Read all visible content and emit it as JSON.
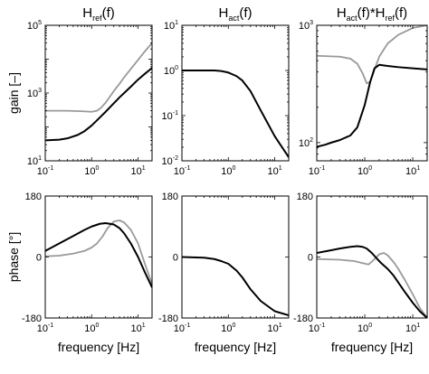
{
  "chart_data": [
    {
      "type": "line",
      "title_parts": [
        [
          "H",
          ""
        ],
        [
          "ref",
          "sub"
        ],
        [
          "(f)",
          ""
        ]
      ],
      "xlabel": "",
      "ylabel": "gain [–]",
      "xscale": "log",
      "yscale": "log",
      "xlim": [
        0.1,
        20
      ],
      "ylim": [
        10,
        100000
      ],
      "xticks": [
        0.1,
        1,
        10
      ],
      "xtick_labels": [
        [
          "10",
          "-1"
        ],
        [
          "10",
          "0"
        ],
        [
          "10",
          "1"
        ]
      ],
      "yticks": [
        10,
        1000,
        100000
      ],
      "ytick_labels": [
        [
          "10",
          "1"
        ],
        [
          "10",
          "3"
        ],
        [
          "10",
          "5"
        ]
      ],
      "series": [
        {
          "color": "#999999",
          "x": [
            0.1,
            0.3,
            0.6,
            1,
            1.3,
            1.6,
            2,
            2.5,
            3,
            4,
            5,
            7,
            10,
            14,
            20
          ],
          "y": [
            300,
            300,
            290,
            280,
            300,
            370,
            520,
            800,
            1150,
            1900,
            2900,
            5200,
            9500,
            17000,
            30000
          ]
        },
        {
          "color": "#000000",
          "x": [
            0.1,
            0.2,
            0.3,
            0.5,
            0.7,
            1,
            1.5,
            2,
            3,
            4,
            5,
            7,
            10,
            14,
            20
          ],
          "y": [
            40,
            42,
            46,
            58,
            75,
            110,
            190,
            280,
            500,
            750,
            1000,
            1550,
            2500,
            3700,
            5500
          ]
        }
      ]
    },
    {
      "type": "line",
      "title_parts": [
        [
          "H",
          ""
        ],
        [
          "act",
          "sub"
        ],
        [
          "(f)",
          ""
        ]
      ],
      "xlabel": "",
      "ylabel": "",
      "xscale": "log",
      "yscale": "log",
      "xlim": [
        0.1,
        20
      ],
      "ylim": [
        0.01,
        10
      ],
      "xticks": [
        0.1,
        1,
        10
      ],
      "xtick_labels": [
        [
          "10",
          "-1"
        ],
        [
          "10",
          "0"
        ],
        [
          "10",
          "1"
        ]
      ],
      "yticks": [
        0.01,
        0.1,
        1,
        10
      ],
      "ytick_labels": [
        [
          "10",
          "-2"
        ],
        [
          "10",
          "-1"
        ],
        [
          "10",
          "0"
        ],
        [
          "10",
          "1"
        ]
      ],
      "series": [
        {
          "color": "#000000",
          "x": [
            0.1,
            0.3,
            0.5,
            0.7,
            1,
            1.5,
            2,
            3,
            5,
            10,
            20
          ],
          "y": [
            1,
            1,
            1,
            0.97,
            0.9,
            0.75,
            0.6,
            0.35,
            0.13,
            0.035,
            0.012
          ]
        }
      ]
    },
    {
      "type": "line",
      "title_parts": [
        [
          "H",
          ""
        ],
        [
          "act",
          "sub"
        ],
        [
          "(f)*H",
          ""
        ],
        [
          "ref",
          "sub"
        ],
        [
          "(f)",
          ""
        ]
      ],
      "xlabel": "",
      "ylabel": "",
      "xscale": "log",
      "yscale": "log",
      "xlim": [
        0.1,
        20
      ],
      "ylim": [
        70,
        1000
      ],
      "xticks": [
        0.1,
        1,
        10
      ],
      "xtick_labels": [
        [
          "10",
          "-1"
        ],
        [
          "10",
          "0"
        ],
        [
          "10",
          "1"
        ]
      ],
      "yticks": [
        100,
        1000
      ],
      "ytick_labels": [
        [
          "10",
          "2"
        ],
        [
          "10",
          "3"
        ]
      ],
      "series": [
        {
          "color": "#999999",
          "x": [
            0.1,
            0.3,
            0.5,
            0.7,
            0.9,
            1.1,
            1.3,
            1.6,
            2,
            3,
            5,
            10,
            20
          ],
          "y": [
            550,
            540,
            520,
            470,
            390,
            320,
            330,
            420,
            540,
            700,
            830,
            950,
            1000
          ]
        },
        {
          "color": "#000000",
          "x": [
            0.1,
            0.15,
            0.2,
            0.3,
            0.5,
            0.7,
            1,
            1.3,
            1.6,
            2,
            3,
            5,
            10,
            20
          ],
          "y": [
            92,
            96,
            100,
            105,
            115,
            135,
            210,
            330,
            430,
            460,
            450,
            440,
            430,
            420
          ]
        }
      ]
    },
    {
      "type": "line",
      "title_parts": [],
      "xlabel": "frequency [Hz]",
      "ylabel": "phase [°]",
      "xscale": "log",
      "yscale": "linear",
      "xlim": [
        0.1,
        20
      ],
      "ylim": [
        -180,
        180
      ],
      "xticks": [
        0.1,
        1,
        10
      ],
      "xtick_labels": [
        [
          "10",
          "-1"
        ],
        [
          "10",
          "0"
        ],
        [
          "10",
          "1"
        ]
      ],
      "yticks": [
        -180,
        0,
        180
      ],
      "ytick_labels": [
        [
          "-180",
          ""
        ],
        [
          "0",
          ""
        ],
        [
          "180",
          ""
        ]
      ],
      "series": [
        {
          "color": "#999999",
          "x": [
            0.1,
            0.2,
            0.4,
            0.7,
            1,
            1.3,
            1.7,
            2.2,
            3,
            4,
            5,
            7,
            10,
            14,
            20
          ],
          "y": [
            2,
            4,
            10,
            18,
            28,
            40,
            60,
            85,
            105,
            108,
            102,
            80,
            40,
            -20,
            -80
          ]
        },
        {
          "color": "#000000",
          "x": [
            0.1,
            0.2,
            0.4,
            0.7,
            1,
            1.5,
            2,
            3,
            4,
            5,
            7,
            10,
            14,
            20
          ],
          "y": [
            18,
            40,
            62,
            80,
            90,
            98,
            100,
            96,
            85,
            70,
            40,
            0,
            -45,
            -90
          ]
        }
      ]
    },
    {
      "type": "line",
      "title_parts": [],
      "xlabel": "frequency [Hz]",
      "ylabel": "",
      "xscale": "log",
      "yscale": "linear",
      "xlim": [
        0.1,
        20
      ],
      "ylim": [
        -180,
        180
      ],
      "xticks": [
        0.1,
        1,
        10
      ],
      "xtick_labels": [
        [
          "10",
          "-1"
        ],
        [
          "10",
          "0"
        ],
        [
          "10",
          "1"
        ]
      ],
      "yticks": [
        -180,
        0,
        180
      ],
      "ytick_labels": [
        [
          "-180",
          ""
        ],
        [
          "0",
          ""
        ],
        [
          "180",
          ""
        ]
      ],
      "series": [
        {
          "color": "#000000",
          "x": [
            0.1,
            0.3,
            0.5,
            0.7,
            1,
            1.5,
            2,
            3,
            5,
            10,
            20
          ],
          "y": [
            0,
            -2,
            -6,
            -12,
            -20,
            -40,
            -60,
            -95,
            -130,
            -160,
            -172
          ]
        }
      ]
    },
    {
      "type": "line",
      "title_parts": [],
      "xlabel": "frequency [Hz]",
      "ylabel": "",
      "xscale": "log",
      "yscale": "linear",
      "xlim": [
        0.1,
        20
      ],
      "ylim": [
        -180,
        180
      ],
      "xticks": [
        0.1,
        1,
        10
      ],
      "xtick_labels": [
        [
          "10",
          "-1"
        ],
        [
          "10",
          "0"
        ],
        [
          "10",
          "1"
        ]
      ],
      "yticks": [
        -180,
        0,
        180
      ],
      "ytick_labels": [
        [
          "-180",
          ""
        ],
        [
          "0",
          ""
        ],
        [
          "180",
          ""
        ]
      ],
      "series": [
        {
          "color": "#999999",
          "x": [
            0.1,
            0.3,
            0.6,
            0.9,
            1.2,
            1.5,
            2,
            2.5,
            3,
            4,
            5,
            7,
            10,
            14,
            20
          ],
          "y": [
            -6,
            -8,
            -12,
            -18,
            -22,
            -10,
            8,
            12,
            5,
            -15,
            -35,
            -70,
            -110,
            -150,
            -180
          ]
        },
        {
          "color": "#000000",
          "x": [
            0.1,
            0.2,
            0.3,
            0.5,
            0.7,
            0.9,
            1.1,
            1.4,
            1.8,
            2.2,
            3,
            4,
            5,
            7,
            10,
            14,
            20
          ],
          "y": [
            12,
            20,
            25,
            30,
            32,
            30,
            25,
            12,
            -5,
            -18,
            -35,
            -55,
            -75,
            -105,
            -135,
            -160,
            -180
          ]
        }
      ]
    }
  ]
}
